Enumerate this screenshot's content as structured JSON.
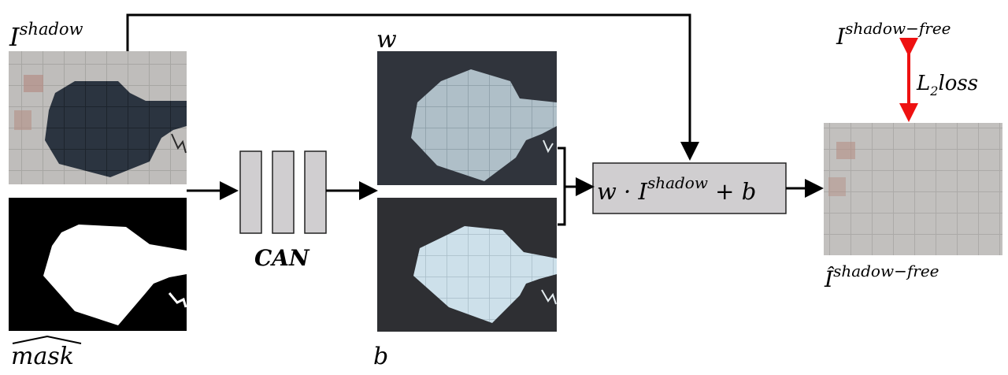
{
  "labels": {
    "input_image": "I",
    "input_image_sup": "shadow",
    "mask": "mask",
    "network": "CAN",
    "w_map": "w",
    "b_map": "b",
    "formula_w_dot": "w · I",
    "formula_sup": "shadow",
    "formula_plus_b": " + b",
    "output_image": "Î",
    "output_image_sup": "shadow−free",
    "ground_truth": "I",
    "ground_truth_sup": "shadow−free",
    "loss_main": "L",
    "loss_sub": "2",
    "loss_suffix": "loss"
  },
  "colors": {
    "arrow": "#000000",
    "loss_arrow": "#ee1111",
    "box_fill": "#d0ced0",
    "pavement": "#b9b7b5",
    "shadow": "#2a333e",
    "map_bg": "#31333c",
    "highlight_w": "#c7dbe0",
    "highlight_b": "#cfe0e8"
  }
}
